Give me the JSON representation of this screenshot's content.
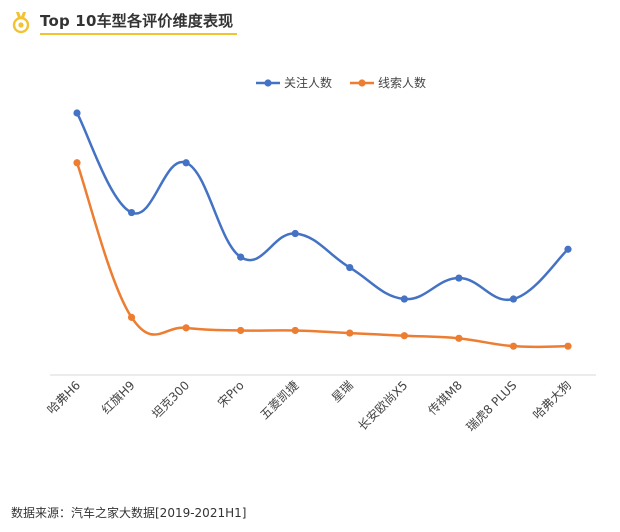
{
  "header": {
    "title": "Top 10车型各评价维度表现",
    "icon": "medal-icon",
    "accent_color": "#F2C230"
  },
  "source": "数据来源：汽车之家大数据[2019-2021H1]",
  "chart_data": {
    "type": "line",
    "title": "",
    "xlabel": "",
    "ylabel": "",
    "categories": [
      "哈弗H6",
      "红旗H9",
      "坦克300",
      "宋Pro",
      "五菱凯捷",
      "星瑞",
      "长安欧尚X5",
      "传祺M8",
      "瑞虎8 PLUS",
      "哈弗大狗"
    ],
    "series": [
      {
        "name": "关注人数",
        "color": "#4472C4",
        "values": [
          100,
          62,
          81,
          45,
          54,
          41,
          29,
          37,
          29,
          48
        ]
      },
      {
        "name": "线索人数",
        "color": "#ED7D31",
        "values": [
          81,
          22,
          18,
          17,
          17,
          16,
          15,
          14,
          11,
          11
        ]
      }
    ],
    "ylim": [
      0,
      100
    ],
    "grid": false,
    "legend": "top-center"
  }
}
